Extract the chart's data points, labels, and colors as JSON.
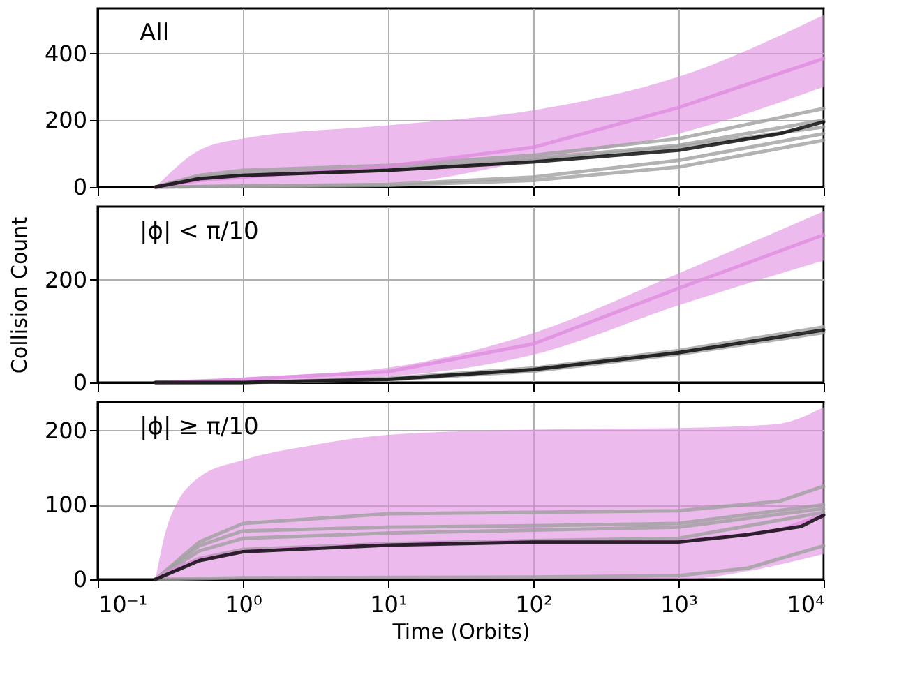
{
  "chart_data": [
    {
      "type": "line",
      "annotations": [
        "All"
      ],
      "xlim": [
        0.1,
        10000
      ],
      "ylim": [
        0,
        535
      ],
      "yticks": [
        0,
        200,
        400
      ],
      "xticks": [
        {
          "value": 0.1,
          "label": null
        },
        {
          "value": 1,
          "label": null
        },
        {
          "value": 10,
          "label": null
        },
        {
          "value": 100,
          "label": null
        },
        {
          "value": 1000,
          "label": null
        },
        {
          "value": 10000,
          "label": null
        }
      ],
      "log": "x",
      "grid": true,
      "tick_labels": "y",
      "series": [
        {
          "color": "#a0a0a0",
          "x": [
            0.25,
            0.5,
            1,
            10,
            100,
            1000,
            10000
          ],
          "values": [
            0,
            35,
            50,
            65,
            95,
            145,
            235
          ]
        },
        {
          "color": "#a0a0a0",
          "x": [
            0.25,
            0.5,
            1,
            10,
            100,
            1000,
            10000
          ],
          "values": [
            0,
            30,
            40,
            55,
            85,
            125,
            200
          ]
        },
        {
          "color": "#a0a0a0",
          "x": [
            0.25,
            0.5,
            1,
            10,
            100,
            1000,
            10000
          ],
          "values": [
            0,
            25,
            35,
            50,
            80,
            120,
            180
          ]
        },
        {
          "color": "#a0a0a0",
          "x": [
            0.25,
            1,
            10,
            100,
            1000,
            10000
          ],
          "values": [
            0,
            3,
            8,
            30,
            80,
            160
          ]
        },
        {
          "color": "#a0a0a0",
          "x": [
            0.25,
            1,
            10,
            100,
            1000,
            10000
          ],
          "values": [
            0,
            2,
            5,
            20,
            60,
            140
          ]
        },
        {
          "color": "#e08ce0",
          "x": [
            0.25,
            0.5,
            1,
            10,
            100,
            1000,
            10000
          ],
          "values": [
            0,
            20,
            30,
            62,
            119,
            238,
            385
          ],
          "lower": [
            0,
            0,
            0,
            10,
            80,
            160,
            300
          ],
          "upper": [
            0,
            110,
            145,
            185,
            230,
            330,
            515
          ]
        },
        {
          "color": "#000000",
          "x": [
            0.25,
            0.5,
            1,
            10,
            100,
            1000,
            5000,
            10000
          ],
          "values": [
            0,
            25,
            35,
            50,
            75,
            110,
            160,
            195
          ]
        }
      ]
    },
    {
      "type": "line",
      "annotations": [
        "|ϕ| < π/10"
      ],
      "ylabel": "Collision Count",
      "xlim": [
        0.1,
        10000
      ],
      "ylim": [
        0,
        342
      ],
      "yticks": [
        0,
        200
      ],
      "xticks": [
        {
          "value": 0.1,
          "label": null
        },
        {
          "value": 1,
          "label": null
        },
        {
          "value": 10,
          "label": null
        },
        {
          "value": 100,
          "label": null
        },
        {
          "value": 1000,
          "label": null
        },
        {
          "value": 10000,
          "label": null
        }
      ],
      "log": "x",
      "grid": true,
      "tick_labels": "y",
      "series": [
        {
          "color": "#a0a0a0",
          "x": [
            0.25,
            1,
            10,
            100,
            1000,
            10000
          ],
          "values": [
            0,
            0,
            8,
            28,
            62,
            108
          ]
        },
        {
          "color": "#a0a0a0",
          "x": [
            0.25,
            1,
            10,
            100,
            1000,
            10000
          ],
          "values": [
            0,
            0,
            5,
            22,
            55,
            97
          ]
        },
        {
          "color": "#e08ce0",
          "x": [
            0.25,
            1,
            10,
            100,
            1000,
            10000
          ],
          "values": [
            0,
            6,
            21,
            75,
            183,
            287
          ],
          "lower": [
            0,
            2,
            12,
            54,
            150,
            237
          ],
          "upper": [
            0,
            10,
            29,
            96,
            212,
            333
          ]
        },
        {
          "color": "#000000",
          "x": [
            0.25,
            1,
            10,
            100,
            1000,
            10000
          ],
          "values": [
            0,
            0,
            6,
            25,
            58,
            102
          ]
        }
      ]
    },
    {
      "type": "line",
      "annotations": [
        "|ϕ| ≥ π/10"
      ],
      "xlabel": "Time (Orbits)",
      "xlim": [
        0.1,
        10000
      ],
      "ylim": [
        0,
        238
      ],
      "yticks": [
        0,
        100,
        200
      ],
      "xticks": [
        {
          "value": 0.1,
          "label": "10⁻¹"
        },
        {
          "value": 1,
          "label": "10⁰"
        },
        {
          "value": 10,
          "label": "10¹"
        },
        {
          "value": 100,
          "label": "10²"
        },
        {
          "value": 1000,
          "label": "10³"
        },
        {
          "value": 10000,
          "label": "10⁴"
        }
      ],
      "log": "x",
      "grid": true,
      "series": [
        {
          "color": "#a0a0a0",
          "x": [
            0.25,
            0.5,
            1,
            10,
            100,
            1000,
            5000,
            10000
          ],
          "values": [
            0,
            50,
            75,
            88,
            90,
            92,
            105,
            125
          ]
        },
        {
          "color": "#a0a0a0",
          "x": [
            0.25,
            0.5,
            1,
            10,
            100,
            1000,
            10000
          ],
          "values": [
            0,
            45,
            65,
            70,
            72,
            75,
            100
          ]
        },
        {
          "color": "#a0a0a0",
          "x": [
            0.25,
            0.5,
            1,
            10,
            100,
            1000,
            10000
          ],
          "values": [
            0,
            38,
            55,
            62,
            66,
            70,
            95
          ]
        },
        {
          "color": "#a0a0a0",
          "x": [
            0.25,
            0.5,
            1,
            10,
            100,
            1000,
            10000
          ],
          "values": [
            0,
            28,
            40,
            48,
            52,
            55,
            90
          ]
        },
        {
          "color": "#a0a0a0",
          "x": [
            0.25,
            1,
            100,
            1000,
            3000,
            10000
          ],
          "values": [
            0,
            2,
            3,
            5,
            15,
            45
          ]
        },
        {
          "color": "#e08ce0",
          "x": [
            0.25,
            0.3,
            0.5,
            1,
            3,
            10,
            100,
            1000,
            3000,
            5000,
            10000
          ],
          "values": [
            0,
            10,
            27,
            38,
            43,
            47,
            51,
            51,
            60,
            66,
            87
          ],
          "lower": [
            0,
            0,
            0,
            0,
            0,
            0,
            0,
            0,
            11,
            20,
            34
          ],
          "upper": [
            0,
            70,
            137,
            160,
            180,
            194,
            201,
            203,
            206,
            209,
            231
          ]
        },
        {
          "color": "#000000",
          "x": [
            0.25,
            0.5,
            1,
            10,
            100,
            1000,
            3000,
            7000,
            10000
          ],
          "values": [
            0,
            25,
            37,
            46,
            50,
            50,
            60,
            71,
            86
          ]
        }
      ]
    }
  ]
}
